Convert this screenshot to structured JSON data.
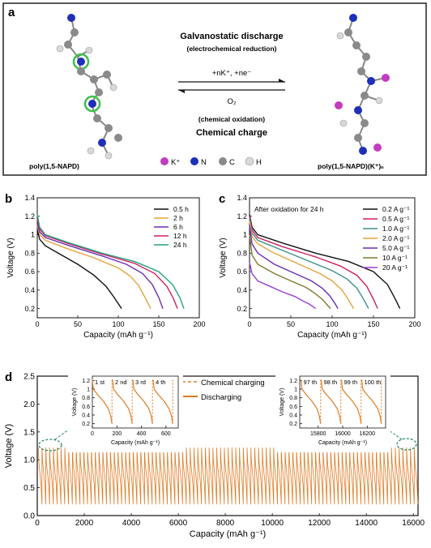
{
  "panel_a": {
    "label": "a",
    "title_discharge": "Galvanostatic discharge",
    "subtitle_discharge": "(electrochemical reduction)",
    "reaction_top": "+nK⁺, +ne⁻",
    "reaction_bottom": "O₂",
    "subtitle_charge": "(chemical oxidation)",
    "title_charge": "Chemical charge",
    "left_molecule": "poly(1,5-NAPD)",
    "right_molecule": "poly(1,5-NAPD)(K⁺)ₙ",
    "legend": [
      {
        "symbol": "K⁺",
        "color": "#c23cc0"
      },
      {
        "symbol": "N",
        "color": "#1e2fb8"
      },
      {
        "symbol": "C",
        "color": "#8a8a8a"
      },
      {
        "symbol": "H",
        "color": "#d9d9d9"
      }
    ]
  },
  "chart_data": [
    {
      "panel": "b",
      "type": "line",
      "xlabel": "Capacity (mAh g⁻¹)",
      "ylabel": "Voltage (V)",
      "xlim": [
        0,
        200
      ],
      "ylim": [
        0.1,
        1.4
      ],
      "xticks": [
        0,
        50,
        100,
        150,
        200
      ],
      "yticks": [
        0.2,
        0.4,
        0.6,
        0.8,
        1.0,
        1.2,
        1.4
      ],
      "legend_position": "top-right",
      "series": [
        {
          "name": "0.5 h",
          "color": "#111111",
          "x": [
            0,
            3,
            10,
            30,
            50,
            70,
            85,
            95,
            101,
            104
          ],
          "y": [
            1.05,
            0.95,
            0.88,
            0.78,
            0.68,
            0.56,
            0.44,
            0.32,
            0.24,
            0.2
          ]
        },
        {
          "name": "2 h",
          "color": "#e8a33c",
          "x": [
            0,
            3,
            10,
            40,
            70,
            100,
            115,
            125,
            133,
            140
          ],
          "y": [
            1.1,
            1.0,
            0.94,
            0.84,
            0.75,
            0.64,
            0.55,
            0.45,
            0.32,
            0.2
          ]
        },
        {
          "name": "6 h",
          "color": "#6a2fb5",
          "x": [
            0,
            3,
            10,
            40,
            80,
            110,
            130,
            142,
            150,
            155
          ],
          "y": [
            1.12,
            1.03,
            0.97,
            0.88,
            0.77,
            0.68,
            0.58,
            0.46,
            0.32,
            0.2
          ]
        },
        {
          "name": "12 h",
          "color": "#d01f5e",
          "x": [
            0,
            3,
            10,
            40,
            80,
            120,
            145,
            160,
            168,
            173
          ],
          "y": [
            1.17,
            1.06,
            0.99,
            0.9,
            0.79,
            0.69,
            0.58,
            0.44,
            0.31,
            0.2
          ]
        },
        {
          "name": "24 h",
          "color": "#25a27c",
          "x": [
            0,
            3,
            10,
            40,
            80,
            120,
            150,
            167,
            176,
            181
          ],
          "y": [
            1.22,
            1.08,
            1.0,
            0.91,
            0.8,
            0.71,
            0.6,
            0.46,
            0.32,
            0.2
          ]
        }
      ]
    },
    {
      "panel": "c",
      "type": "line",
      "annotation": "After oxidation for 24 h",
      "xlabel": "Capacity (mAh g⁻¹)",
      "ylabel": "Voltage (V)",
      "xlim": [
        0,
        200
      ],
      "ylim": [
        0.1,
        1.4
      ],
      "xticks": [
        0,
        50,
        100,
        150,
        200
      ],
      "yticks": [
        0.2,
        0.4,
        0.6,
        0.8,
        1.0,
        1.2,
        1.4
      ],
      "legend_position": "top-right",
      "series": [
        {
          "name": "0.2 A g⁻¹",
          "color": "#111111",
          "x": [
            0,
            3,
            10,
            40,
            80,
            120,
            150,
            167,
            176,
            182
          ],
          "y": [
            1.22,
            1.08,
            1.0,
            0.91,
            0.8,
            0.71,
            0.6,
            0.46,
            0.31,
            0.2
          ]
        },
        {
          "name": "0.5 A g⁻¹",
          "color": "#d01f5e",
          "x": [
            0,
            3,
            10,
            40,
            80,
            110,
            130,
            142,
            150,
            155
          ],
          "y": [
            1.2,
            1.05,
            0.97,
            0.87,
            0.76,
            0.66,
            0.56,
            0.44,
            0.3,
            0.2
          ]
        },
        {
          "name": "1.0 A g⁻¹",
          "color": "#3d8f8a",
          "x": [
            0,
            3,
            10,
            40,
            70,
            100,
            118,
            130,
            138,
            144
          ],
          "y": [
            1.18,
            1.02,
            0.94,
            0.83,
            0.72,
            0.61,
            0.52,
            0.42,
            0.3,
            0.2
          ]
        },
        {
          "name": "2.0 A g⁻¹",
          "color": "#e8a33c",
          "x": [
            0,
            3,
            10,
            30,
            60,
            85,
            100,
            112,
            120,
            126
          ],
          "y": [
            1.15,
            0.98,
            0.9,
            0.8,
            0.68,
            0.58,
            0.5,
            0.4,
            0.29,
            0.2
          ]
        },
        {
          "name": "5.0 A g⁻¹",
          "color": "#6a2fb5",
          "x": [
            0,
            3,
            10,
            30,
            55,
            75,
            88,
            97,
            103,
            107
          ],
          "y": [
            1.1,
            0.9,
            0.8,
            0.68,
            0.58,
            0.5,
            0.42,
            0.34,
            0.26,
            0.2
          ]
        },
        {
          "name": "10 A g⁻¹",
          "color": "#7d7a2f",
          "x": [
            0,
            3,
            10,
            30,
            50,
            68,
            80,
            88,
            94,
            98
          ],
          "y": [
            1.0,
            0.78,
            0.68,
            0.58,
            0.5,
            0.43,
            0.36,
            0.3,
            0.24,
            0.2
          ]
        },
        {
          "name": "20 A g⁻¹",
          "color": "#9b3fd6",
          "x": [
            0,
            3,
            10,
            25,
            40,
            55,
            65,
            72,
            77,
            80
          ],
          "y": [
            0.7,
            0.58,
            0.5,
            0.44,
            0.38,
            0.33,
            0.28,
            0.25,
            0.22,
            0.2
          ]
        }
      ]
    },
    {
      "panel": "d",
      "type": "line",
      "xlabel": "Capacity (mAh g⁻¹)",
      "ylabel": "Voltage (V)",
      "xlim": [
        0,
        16200
      ],
      "ylim": [
        0,
        2.5
      ],
      "xticks": [
        0,
        2000,
        4000,
        6000,
        8000,
        10000,
        12000,
        14000,
        16000
      ],
      "yticks": [
        0.0,
        0.5,
        1.0,
        1.5,
        2.0,
        2.5
      ],
      "legend_position": "top-center",
      "pattern": "sawtooth",
      "cycles": 100,
      "cycle_peak_v": 1.22,
      "cycle_trough_v": 0.2,
      "series": [
        {
          "name": "Chemical charging",
          "color": "#e07b24",
          "style": "dashed"
        },
        {
          "name": "Discharging",
          "color": "#e07b24",
          "style": "solid"
        }
      ],
      "insets": [
        {
          "position": "left",
          "xlim": [
            0,
            700
          ],
          "ylim": [
            0.1,
            1.3
          ],
          "xticks": [
            0,
            200,
            400,
            600
          ],
          "yticks": [
            0.2,
            0.4,
            0.6,
            0.8,
            1.0,
            1.2
          ],
          "xlabel": "Capacity (mAh g⁻¹)",
          "ylabel": "Voltage (V)",
          "cycle_labels": [
            "1 st",
            "2 nd",
            "3 rd",
            "4 th"
          ],
          "cycle_starts": [
            0,
            165,
            330,
            495
          ],
          "cycle_length": 160
        },
        {
          "position": "right",
          "xlim": [
            15650,
            16350
          ],
          "ylim": [
            0.1,
            1.3
          ],
          "xticks": [
            15800,
            16000,
            16200
          ],
          "yticks": [
            0.2,
            0.4,
            0.6,
            0.8,
            1.0,
            1.2
          ],
          "xlabel": "Capacity (mAh g⁻¹)",
          "ylabel": "Voltage (V)",
          "cycle_labels": [
            "97 th",
            "98 th",
            "99 th",
            "100 th"
          ],
          "cycle_starts": [
            15660,
            15825,
            15990,
            16155
          ],
          "cycle_length": 160
        }
      ]
    }
  ]
}
